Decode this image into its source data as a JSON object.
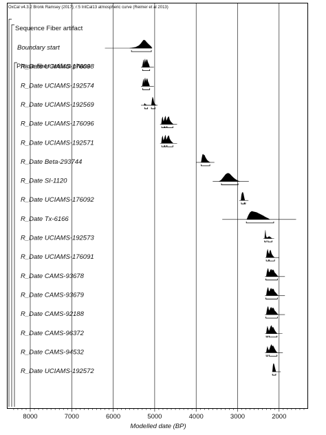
{
  "chart_data": {
    "type": "multiplot",
    "caption": "OxCal v4.3.2 Bronk Ramsey (2017); r:5 IntCal13 atmospheric curve (Reimer et al 2013)",
    "xlabel": "Modelled date (BP)",
    "x_ticks": [
      "8000",
      "7000",
      "6000",
      "5000",
      "4000",
      "3000",
      "2000"
    ],
    "xlim": [
      8400,
      1400
    ],
    "x_reversed": true,
    "grid": true,
    "groups": [
      {
        "label": "Sequence Fiber artifact"
      },
      {
        "label": "Phase fiber artifact phase"
      }
    ],
    "rows": [
      {
        "label": "Boundary start",
        "line": [
          6200,
          5070
        ],
        "dist": [
          [
            5600,
            0
          ],
          [
            5460,
            0.12
          ],
          [
            5380,
            0.32
          ],
          [
            5330,
            0.58
          ],
          [
            5290,
            0.86
          ],
          [
            5265,
            1
          ],
          [
            5230,
            0.94
          ],
          [
            5190,
            0.7
          ],
          [
            5140,
            0.45
          ],
          [
            5090,
            0.22
          ],
          [
            5060,
            0
          ]
        ],
        "brackets": [
          [
            5560,
            5080
          ]
        ]
      },
      {
        "label": "R_Date UCIAMS-176098",
        "line": [
          5330,
          5020
        ],
        "dist": [
          [
            5300,
            0
          ],
          [
            5280,
            0.6
          ],
          [
            5268,
            0.9
          ],
          [
            5255,
            0.3
          ],
          [
            5245,
            0.75
          ],
          [
            5232,
            1
          ],
          [
            5215,
            0.5
          ],
          [
            5200,
            0.85
          ],
          [
            5185,
            0.95
          ],
          [
            5165,
            0.6
          ],
          [
            5140,
            0.35
          ],
          [
            5120,
            0
          ]
        ],
        "brackets": [
          [
            5290,
            5120
          ]
        ]
      },
      {
        "label": "R_Date UCIAMS-192574",
        "line": [
          5330,
          5020
        ],
        "dist": [
          [
            5300,
            0
          ],
          [
            5282,
            0.55
          ],
          [
            5270,
            0.85
          ],
          [
            5256,
            0.3
          ],
          [
            5244,
            0.8
          ],
          [
            5230,
            1
          ],
          [
            5212,
            0.5
          ],
          [
            5198,
            0.8
          ],
          [
            5182,
            0.95
          ],
          [
            5160,
            0.55
          ],
          [
            5138,
            0.3
          ],
          [
            5120,
            0
          ]
        ],
        "brackets": [
          [
            5290,
            5120
          ]
        ]
      },
      {
        "label": "R_Date UCIAMS-192569",
        "line": [
          5330,
          4930
        ],
        "dist": [
          [
            5260,
            0
          ],
          [
            5240,
            0.25
          ],
          [
            5225,
            0.1
          ],
          [
            5200,
            0.05
          ],
          [
            5180,
            0
          ],
          [
            5080,
            0
          ],
          [
            5065,
            0.6
          ],
          [
            5050,
            1
          ],
          [
            5035,
            0.8
          ],
          [
            5015,
            0.3
          ],
          [
            4990,
            0.1
          ],
          [
            4960,
            0
          ]
        ],
        "brackets": [
          [
            5240,
            5170
          ],
          [
            5080,
            4990
          ]
        ]
      },
      {
        "label": "R_Date UCIAMS-176096",
        "line": [
          4870,
          4460
        ],
        "dist": [
          [
            4840,
            0
          ],
          [
            4822,
            0.7
          ],
          [
            4808,
            0.9
          ],
          [
            4790,
            0.35
          ],
          [
            4772,
            0.5
          ],
          [
            4752,
            0.85
          ],
          [
            4738,
            1
          ],
          [
            4720,
            0.4
          ],
          [
            4700,
            0.6
          ],
          [
            4680,
            0.85
          ],
          [
            4660,
            0.95
          ],
          [
            4640,
            0.55
          ],
          [
            4610,
            0.3
          ],
          [
            4580,
            0.15
          ],
          [
            4550,
            0
          ]
        ],
        "brackets": [
          [
            4830,
            4770
          ],
          [
            4760,
            4720
          ],
          [
            4700,
            4560
          ]
        ]
      },
      {
        "label": "R_Date UCIAMS-192571",
        "line": [
          4870,
          4460
        ],
        "dist": [
          [
            4840,
            0
          ],
          [
            4822,
            0.7
          ],
          [
            4808,
            0.9
          ],
          [
            4790,
            0.35
          ],
          [
            4772,
            0.5
          ],
          [
            4752,
            0.85
          ],
          [
            4738,
            1
          ],
          [
            4720,
            0.4
          ],
          [
            4700,
            0.6
          ],
          [
            4680,
            0.85
          ],
          [
            4660,
            0.95
          ],
          [
            4640,
            0.55
          ],
          [
            4610,
            0.3
          ],
          [
            4580,
            0.15
          ],
          [
            4550,
            0
          ]
        ],
        "brackets": [
          [
            4830,
            4770
          ],
          [
            4760,
            4720
          ],
          [
            4700,
            4560
          ]
        ]
      },
      {
        "label": "R_Date Beta-293744",
        "line": [
          4000,
          3560
        ],
        "dist": [
          [
            3880,
            0
          ],
          [
            3860,
            0.6
          ],
          [
            3845,
            0.95
          ],
          [
            3830,
            1
          ],
          [
            3815,
            0.85
          ],
          [
            3800,
            0.9
          ],
          [
            3785,
            0.7
          ],
          [
            3770,
            0.55
          ],
          [
            3740,
            0.3
          ],
          [
            3700,
            0.12
          ],
          [
            3660,
            0
          ]
        ],
        "brackets": [
          [
            3880,
            3670
          ]
        ]
      },
      {
        "label": "R_Date SI-1120",
        "line": [
          3600,
          2730
        ],
        "dist": [
          [
            3450,
            0
          ],
          [
            3400,
            0.15
          ],
          [
            3360,
            0.4
          ],
          [
            3320,
            0.65
          ],
          [
            3290,
            0.85
          ],
          [
            3260,
            0.95
          ],
          [
            3230,
            1
          ],
          [
            3190,
            0.92
          ],
          [
            3150,
            0.7
          ],
          [
            3100,
            0.45
          ],
          [
            3050,
            0.25
          ],
          [
            3000,
            0.1
          ],
          [
            2950,
            0
          ]
        ],
        "brackets": [
          [
            3390,
            2990
          ]
        ]
      },
      {
        "label": "R_Date UCIAMS-176092",
        "line": [
          2960,
          2740
        ],
        "dist": [
          [
            2920,
            0
          ],
          [
            2905,
            0.7
          ],
          [
            2890,
            0.95
          ],
          [
            2875,
            1
          ],
          [
            2860,
            0.8
          ],
          [
            2845,
            0.4
          ],
          [
            2825,
            0
          ]
        ],
        "brackets": [
          [
            2910,
            2840
          ],
          [
            2835,
            2810
          ]
        ]
      },
      {
        "label": "R_Date Tx-6166",
        "line": [
          3370,
          1590
        ],
        "dist": [
          [
            2780,
            0
          ],
          [
            2740,
            0.5
          ],
          [
            2700,
            0.85
          ],
          [
            2660,
            1
          ],
          [
            2620,
            0.95
          ],
          [
            2580,
            0.9
          ],
          [
            2540,
            0.85
          ],
          [
            2500,
            0.75
          ],
          [
            2460,
            0.65
          ],
          [
            2420,
            0.55
          ],
          [
            2380,
            0.45
          ],
          [
            2340,
            0.32
          ],
          [
            2300,
            0.22
          ],
          [
            2260,
            0.12
          ],
          [
            2220,
            0
          ]
        ],
        "brackets": [
          [
            2790,
            2130
          ]
        ]
      },
      {
        "label": "R_Date UCIAMS-192573",
        "line": [
          2380,
          2120
        ],
        "dist": [
          [
            2350,
            0
          ],
          [
            2340,
            0.55
          ],
          [
            2330,
            1
          ],
          [
            2320,
            0.4
          ],
          [
            2305,
            0.15
          ],
          [
            2285,
            0.1
          ],
          [
            2260,
            0.2
          ],
          [
            2240,
            0.25
          ],
          [
            2220,
            0.2
          ],
          [
            2195,
            0.1
          ],
          [
            2170,
            0
          ]
        ],
        "brackets": [
          [
            2350,
            2310
          ],
          [
            2270,
            2170
          ]
        ]
      },
      {
        "label": "R_Date UCIAMS-176091",
        "line": [
          2330,
          2000
        ],
        "dist": [
          [
            2310,
            0
          ],
          [
            2292,
            0.7
          ],
          [
            2276,
            1
          ],
          [
            2260,
            0.6
          ],
          [
            2240,
            0.4
          ],
          [
            2220,
            0.85
          ],
          [
            2205,
            0.9
          ],
          [
            2190,
            0.6
          ],
          [
            2170,
            0.35
          ],
          [
            2140,
            0.15
          ],
          [
            2110,
            0
          ]
        ],
        "brackets": [
          [
            2310,
            2250
          ],
          [
            2240,
            2110
          ]
        ]
      },
      {
        "label": "R_Date CAMS-93678",
        "line": [
          2340,
          1860
        ],
        "dist": [
          [
            2310,
            0
          ],
          [
            2295,
            0.5
          ],
          [
            2280,
            0.85
          ],
          [
            2265,
            1
          ],
          [
            2250,
            0.6
          ],
          [
            2230,
            0.5
          ],
          [
            2210,
            0.8
          ],
          [
            2190,
            0.9
          ],
          [
            2170,
            0.7
          ],
          [
            2150,
            0.85
          ],
          [
            2130,
            0.75
          ],
          [
            2110,
            0.5
          ],
          [
            2080,
            0.35
          ],
          [
            2050,
            0.15
          ],
          [
            2020,
            0
          ]
        ],
        "brackets": [
          [
            2320,
            2040
          ]
        ]
      },
      {
        "label": "R_Date CAMS-93679",
        "line": [
          2340,
          1860
        ],
        "dist": [
          [
            2310,
            0
          ],
          [
            2295,
            0.5
          ],
          [
            2280,
            0.85
          ],
          [
            2265,
            1
          ],
          [
            2250,
            0.6
          ],
          [
            2230,
            0.5
          ],
          [
            2210,
            0.8
          ],
          [
            2190,
            0.9
          ],
          [
            2170,
            0.7
          ],
          [
            2150,
            0.85
          ],
          [
            2130,
            0.75
          ],
          [
            2110,
            0.5
          ],
          [
            2080,
            0.35
          ],
          [
            2050,
            0.15
          ],
          [
            2020,
            0
          ]
        ],
        "brackets": [
          [
            2320,
            2040
          ]
        ]
      },
      {
        "label": "R_Date CAMS-92188",
        "line": [
          2340,
          1860
        ],
        "dist": [
          [
            2310,
            0
          ],
          [
            2295,
            0.5
          ],
          [
            2280,
            0.85
          ],
          [
            2265,
            1
          ],
          [
            2250,
            0.6
          ],
          [
            2230,
            0.5
          ],
          [
            2210,
            0.8
          ],
          [
            2190,
            0.9
          ],
          [
            2170,
            0.7
          ],
          [
            2150,
            0.85
          ],
          [
            2130,
            0.75
          ],
          [
            2110,
            0.5
          ],
          [
            2080,
            0.35
          ],
          [
            2050,
            0.15
          ],
          [
            2020,
            0
          ]
        ],
        "brackets": [
          [
            2320,
            2040
          ]
        ]
      },
      {
        "label": "R_Date CAMS-96372",
        "line": [
          2340,
          1920
        ],
        "dist": [
          [
            2310,
            0
          ],
          [
            2295,
            0.55
          ],
          [
            2280,
            0.9
          ],
          [
            2265,
            0.6
          ],
          [
            2245,
            0.3
          ],
          [
            2225,
            0.55
          ],
          [
            2205,
            0.85
          ],
          [
            2185,
            1
          ],
          [
            2165,
            0.7
          ],
          [
            2145,
            0.8
          ],
          [
            2125,
            0.6
          ],
          [
            2100,
            0.35
          ],
          [
            2070,
            0.15
          ],
          [
            2040,
            0
          ]
        ],
        "brackets": [
          [
            2310,
            2270
          ],
          [
            2240,
            2050
          ]
        ]
      },
      {
        "label": "R_Date CAMS-94532",
        "line": [
          2340,
          1910
        ],
        "dist": [
          [
            2310,
            0
          ],
          [
            2295,
            0.45
          ],
          [
            2280,
            0.75
          ],
          [
            2265,
            0.45
          ],
          [
            2245,
            0.25
          ],
          [
            2225,
            0.5
          ],
          [
            2205,
            0.8
          ],
          [
            2185,
            1
          ],
          [
            2165,
            0.75
          ],
          [
            2145,
            0.85
          ],
          [
            2125,
            0.65
          ],
          [
            2100,
            0.4
          ],
          [
            2070,
            0.15
          ],
          [
            2040,
            0
          ]
        ],
        "brackets": [
          [
            2310,
            2270
          ],
          [
            2240,
            2050
          ]
        ]
      },
      {
        "label": "R_Date UCIAMS-192572",
        "line": [
          2170,
          1960
        ],
        "dist": [
          [
            2160,
            0
          ],
          [
            2150,
            0.6
          ],
          [
            2140,
            0.95
          ],
          [
            2130,
            1
          ],
          [
            2118,
            0.85
          ],
          [
            2105,
            0.55
          ],
          [
            2090,
            0.25
          ],
          [
            2075,
            0
          ]
        ],
        "brackets": [
          [
            2160,
            2080
          ]
        ]
      }
    ]
  }
}
